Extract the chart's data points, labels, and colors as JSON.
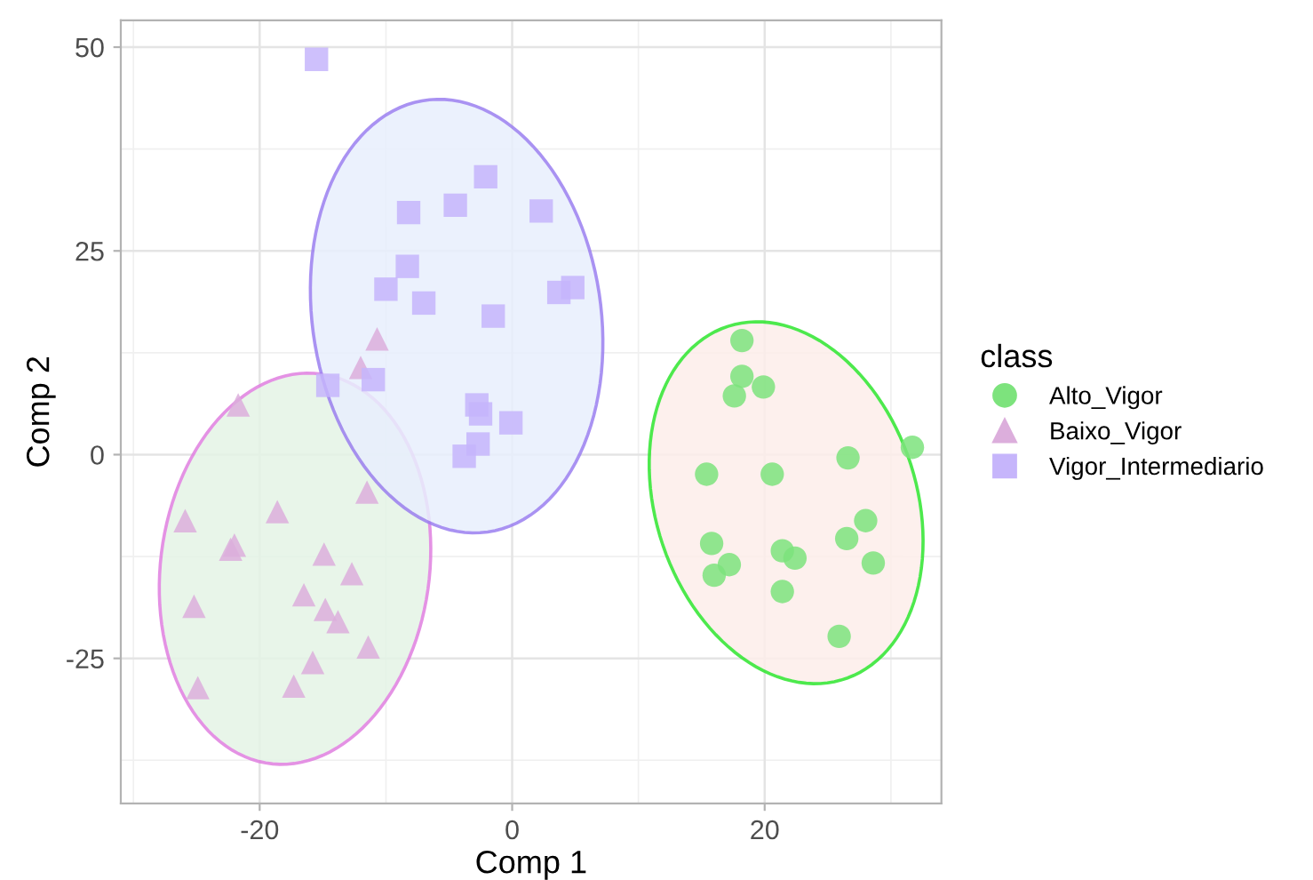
{
  "chart_data": {
    "type": "scatter",
    "xlabel": "Comp 1",
    "ylabel": "Comp 2",
    "legend_title": "class",
    "xlim": [
      -31,
      34
    ],
    "ylim": [
      -42.8,
      53.3
    ],
    "xticks": [
      -20,
      0,
      20
    ],
    "yticks": [
      -25,
      0,
      25,
      50
    ],
    "grid": true,
    "legend": "right",
    "series": [
      {
        "name": "Alto_Vigor",
        "color": "#7de37d",
        "marker": "circle",
        "x": [
          18.2,
          18.2,
          17.6,
          19.9,
          31.7,
          26.6,
          15.4,
          20.6,
          28.0,
          26.5,
          15.8,
          21.4,
          22.4,
          28.6,
          17.2,
          16.0,
          21.4,
          25.9
        ],
        "values": [
          14.0,
          9.6,
          7.2,
          8.3,
          0.9,
          -0.4,
          -2.4,
          -2.4,
          -8.1,
          -10.3,
          -10.9,
          -11.8,
          -12.7,
          -13.3,
          -13.5,
          -14.8,
          -16.8,
          -22.3
        ]
      },
      {
        "name": "Baixo_Vigor",
        "color": "#dcaedc",
        "marker": "triangle",
        "x": [
          -10.7,
          -12.0,
          -21.7,
          -11.5,
          -25.9,
          -18.6,
          -22.0,
          -22.3,
          -14.9,
          -12.7,
          -16.5,
          -14.8,
          -13.8,
          -25.2,
          -11.4,
          -15.8,
          -17.3,
          -24.9
        ],
        "values": [
          14.2,
          10.7,
          6.1,
          -4.6,
          -8.1,
          -7.0,
          -11.1,
          -11.6,
          -12.2,
          -14.6,
          -17.2,
          -19.0,
          -20.5,
          -18.6,
          -23.6,
          -25.5,
          -28.4,
          -28.6
        ]
      },
      {
        "name": "Vigor_Intermediario",
        "color": "#c6b5fb",
        "marker": "square",
        "x": [
          -15.5,
          -2.1,
          -4.5,
          -8.2,
          2.3,
          -8.3,
          -10.0,
          -7.0,
          -1.5,
          3.7,
          4.8,
          -11.0,
          -14.6,
          -2.8,
          -2.5,
          -0.1,
          -2.7,
          -3.8
        ],
        "values": [
          48.5,
          34.1,
          30.6,
          29.7,
          29.9,
          23.1,
          20.3,
          18.6,
          17.0,
          19.9,
          20.5,
          9.2,
          8.5,
          6.1,
          5.0,
          3.9,
          1.3,
          -0.2
        ]
      }
    ]
  }
}
